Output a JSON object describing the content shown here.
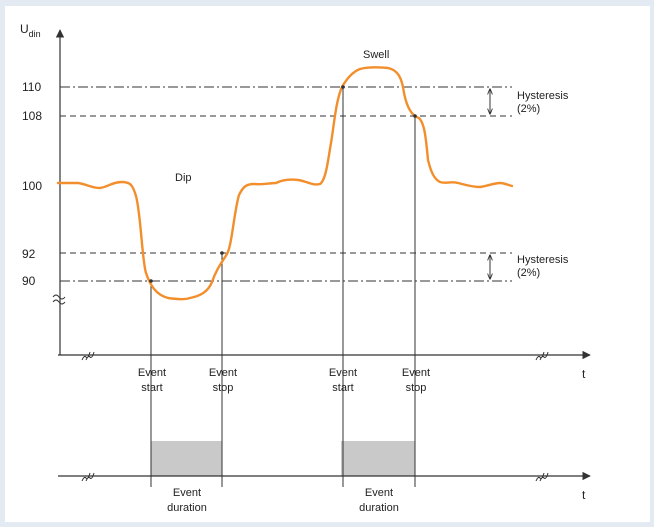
{
  "y_axis": {
    "symbol": "U",
    "subscript": "din"
  },
  "levels": [
    {
      "label": "110",
      "value": 110,
      "style": "dashdot"
    },
    {
      "label": "108",
      "value": 108,
      "style": "dashed"
    },
    {
      "label": "100",
      "value": 100,
      "style": "none"
    },
    {
      "label": "92",
      "value": 92,
      "style": "dashed"
    },
    {
      "label": "90",
      "value": 90,
      "style": "dashdot"
    }
  ],
  "annotations": {
    "swell": "Swell",
    "dip": "Dip",
    "hysteresis_top": [
      "Hysteresis",
      "(2%)"
    ],
    "hysteresis_bottom": [
      "Hysteresis",
      "(2%)"
    ]
  },
  "time_axis_label": "t",
  "lower_axis_label": "t",
  "events": [
    {
      "label": [
        "Event",
        "start"
      ]
    },
    {
      "label": [
        "Event",
        "stop"
      ]
    },
    {
      "label": [
        "Event",
        "start"
      ]
    },
    {
      "label": [
        "Event",
        "stop"
      ]
    }
  ],
  "durations": [
    {
      "label": [
        "Event",
        "duration"
      ]
    },
    {
      "label": [
        "Event",
        "duration"
      ]
    }
  ],
  "colors": {
    "signal": "#f28e2b",
    "lines": "#333333",
    "duration_fill": "#c9c9c9"
  }
}
